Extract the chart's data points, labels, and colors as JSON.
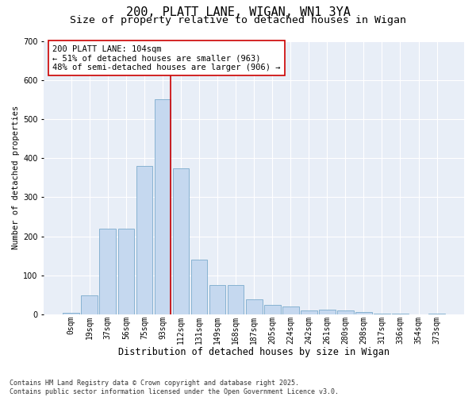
{
  "title1": "200, PLATT LANE, WIGAN, WN1 3YA",
  "title2": "Size of property relative to detached houses in Wigan",
  "xlabel": "Distribution of detached houses by size in Wigan",
  "ylabel": "Number of detached properties",
  "bar_labels": [
    "0sqm",
    "19sqm",
    "37sqm",
    "56sqm",
    "75sqm",
    "93sqm",
    "112sqm",
    "131sqm",
    "149sqm",
    "168sqm",
    "187sqm",
    "205sqm",
    "224sqm",
    "242sqm",
    "261sqm",
    "280sqm",
    "298sqm",
    "317sqm",
    "336sqm",
    "354sqm",
    "373sqm"
  ],
  "bar_values": [
    5,
    50,
    220,
    220,
    380,
    550,
    375,
    140,
    75,
    75,
    38,
    25,
    20,
    10,
    13,
    10,
    7,
    3,
    2,
    1,
    3
  ],
  "bar_color": "#c5d8ef",
  "bar_edgecolor": "#7aaacc",
  "vline_x_idx": 5,
  "vline_color": "#cc0000",
  "annotation_text": "200 PLATT LANE: 104sqm\n← 51% of detached houses are smaller (963)\n48% of semi-detached houses are larger (906) →",
  "annotation_box_color": "#ffffff",
  "annotation_box_edge": "#cc0000",
  "ylim": [
    0,
    700
  ],
  "yticks": [
    0,
    100,
    200,
    300,
    400,
    500,
    600,
    700
  ],
  "bg_color": "#e8eef7",
  "footer": "Contains HM Land Registry data © Crown copyright and database right 2025.\nContains public sector information licensed under the Open Government Licence v3.0.",
  "title1_fontsize": 11,
  "title2_fontsize": 9.5,
  "xlabel_fontsize": 8.5,
  "ylabel_fontsize": 7.5,
  "tick_fontsize": 7,
  "annotation_fontsize": 7.5,
  "footer_fontsize": 6
}
